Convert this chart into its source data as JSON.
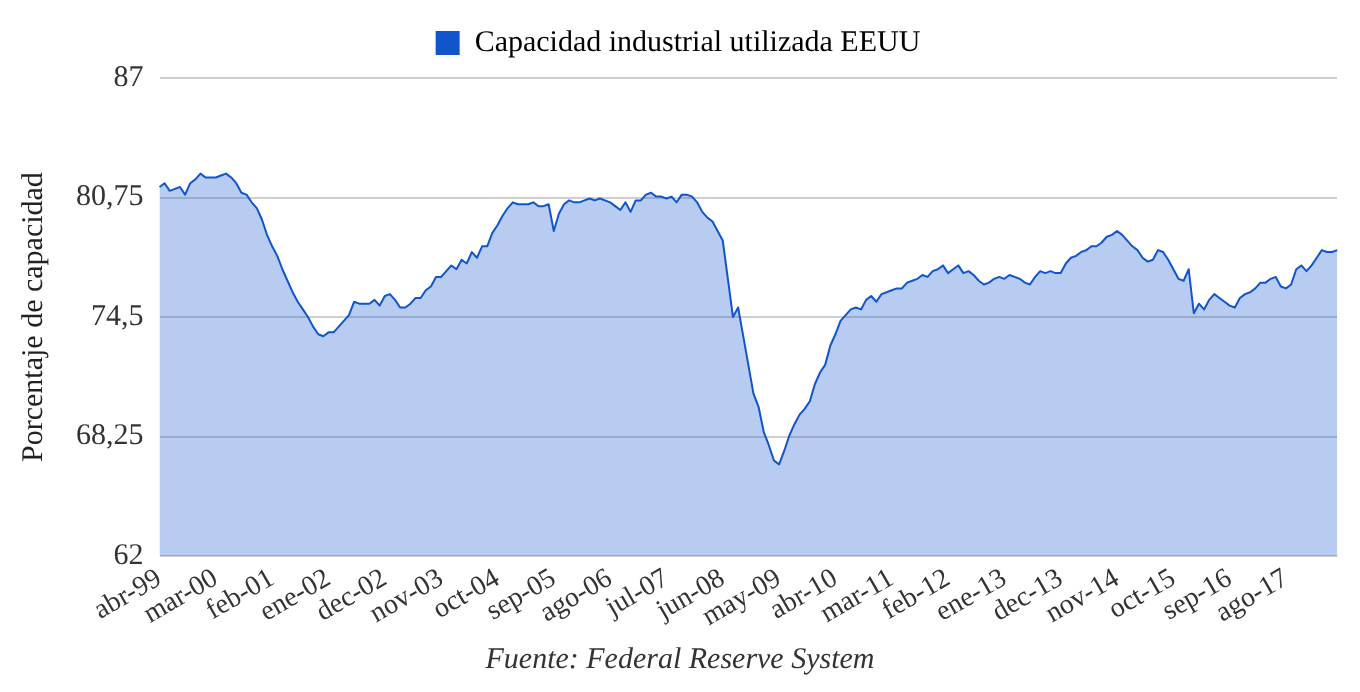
{
  "chart_data": {
    "type": "area",
    "title": null,
    "ylabel": "Porcentaje de capacidad",
    "annotations": [
      "Fuente: Federal Reserve System"
    ],
    "categories": [
      "abr-99",
      null,
      null,
      null,
      null,
      null,
      null,
      null,
      null,
      null,
      null,
      "mar-00",
      null,
      null,
      null,
      null,
      null,
      null,
      null,
      null,
      null,
      null,
      "feb-01",
      null,
      null,
      null,
      null,
      null,
      null,
      null,
      null,
      null,
      null,
      "ene-02",
      null,
      null,
      null,
      null,
      null,
      null,
      null,
      null,
      null,
      null,
      "dec-02",
      null,
      null,
      null,
      null,
      null,
      null,
      null,
      null,
      null,
      null,
      "nov-03",
      null,
      null,
      null,
      null,
      null,
      null,
      null,
      null,
      null,
      null,
      "oct-04",
      null,
      null,
      null,
      null,
      null,
      null,
      null,
      null,
      null,
      null,
      "sep-05",
      null,
      null,
      null,
      null,
      null,
      null,
      null,
      null,
      null,
      null,
      "ago-06",
      null,
      null,
      null,
      null,
      null,
      null,
      null,
      null,
      null,
      null,
      "jul-07",
      null,
      null,
      null,
      null,
      null,
      null,
      null,
      null,
      null,
      null,
      "jun-08",
      null,
      null,
      null,
      null,
      null,
      null,
      null,
      null,
      null,
      null,
      "may-09",
      null,
      null,
      null,
      null,
      null,
      null,
      null,
      null,
      null,
      null,
      "abr-10",
      null,
      null,
      null,
      null,
      null,
      null,
      null,
      null,
      null,
      null,
      "mar-11",
      null,
      null,
      null,
      null,
      null,
      null,
      null,
      null,
      null,
      null,
      "feb-12",
      null,
      null,
      null,
      null,
      null,
      null,
      null,
      null,
      null,
      null,
      "ene-13",
      null,
      null,
      null,
      null,
      null,
      null,
      null,
      null,
      null,
      null,
      "dec-13",
      null,
      null,
      null,
      null,
      null,
      null,
      null,
      null,
      null,
      null,
      "nov-14",
      null,
      null,
      null,
      null,
      null,
      null,
      null,
      null,
      null,
      null,
      "oct-15",
      null,
      null,
      null,
      null,
      null,
      null,
      null,
      null,
      null,
      null,
      "sep-16",
      null,
      null,
      null,
      null,
      null,
      null,
      null,
      null,
      null,
      null,
      "ago-17",
      null,
      null,
      null,
      null,
      null,
      null,
      null,
      null,
      null,
      null
    ],
    "series": [
      {
        "name": "Capacidad industrial utilizada EEUU",
        "color": "#1155cc",
        "values": [
          81.3,
          81.5,
          81.1,
          81.2,
          81.3,
          80.9,
          81.5,
          81.7,
          82.0,
          81.8,
          81.8,
          81.8,
          81.9,
          82.0,
          81.8,
          81.5,
          81.0,
          80.9,
          80.5,
          80.2,
          79.6,
          78.8,
          78.2,
          77.7,
          77.0,
          76.4,
          75.8,
          75.3,
          74.9,
          74.5,
          74.0,
          73.6,
          73.5,
          73.7,
          73.7,
          74.0,
          74.3,
          74.6,
          75.3,
          75.2,
          75.2,
          75.2,
          75.4,
          75.1,
          75.6,
          75.7,
          75.4,
          75.0,
          75.0,
          75.2,
          75.5,
          75.5,
          75.9,
          76.1,
          76.6,
          76.6,
          76.9,
          77.2,
          77.0,
          77.5,
          77.3,
          77.9,
          77.6,
          78.2,
          78.2,
          78.9,
          79.3,
          79.8,
          80.2,
          80.5,
          80.4,
          80.4,
          80.4,
          80.5,
          80.3,
          80.3,
          80.4,
          79.0,
          79.9,
          80.4,
          80.6,
          80.5,
          80.5,
          80.6,
          80.7,
          80.6,
          80.7,
          80.6,
          80.5,
          80.3,
          80.1,
          80.5,
          80.0,
          80.6,
          80.6,
          80.9,
          81.0,
          80.8,
          80.8,
          80.7,
          80.8,
          80.5,
          80.9,
          80.9,
          80.8,
          80.5,
          80.0,
          79.7,
          79.5,
          79.0,
          78.5,
          76.5,
          74.5,
          75.0,
          73.5,
          72.0,
          70.5,
          69.8,
          68.5,
          67.8,
          67.0,
          66.8,
          67.5,
          68.3,
          68.9,
          69.4,
          69.7,
          70.1,
          71.0,
          71.6,
          72.0,
          73.0,
          73.6,
          74.3,
          74.6,
          74.9,
          75.0,
          74.9,
          75.4,
          75.6,
          75.3,
          75.7,
          75.8,
          75.9,
          76.0,
          76.0,
          76.3,
          76.4,
          76.5,
          76.7,
          76.6,
          76.9,
          77.0,
          77.2,
          76.8,
          77.0,
          77.2,
          76.8,
          76.9,
          76.7,
          76.4,
          76.2,
          76.3,
          76.5,
          76.6,
          76.5,
          76.7,
          76.6,
          76.5,
          76.3,
          76.2,
          76.6,
          76.9,
          76.8,
          76.9,
          76.8,
          76.8,
          77.3,
          77.6,
          77.7,
          77.9,
          78.0,
          78.2,
          78.2,
          78.4,
          78.7,
          78.8,
          79.0,
          78.8,
          78.5,
          78.2,
          78.0,
          77.6,
          77.4,
          77.5,
          78.0,
          77.9,
          77.5,
          77.0,
          76.5,
          76.4,
          77.0,
          74.7,
          75.2,
          74.9,
          75.4,
          75.7,
          75.5,
          75.3,
          75.1,
          75.0,
          75.5,
          75.7,
          75.8,
          76.0,
          76.3,
          76.3,
          76.5,
          76.6,
          76.1,
          76.0,
          76.2,
          77.0,
          77.2,
          76.9,
          77.2,
          77.6,
          78.0,
          77.9,
          77.9,
          78.0
        ]
      }
    ],
    "ylim": [
      62,
      87
    ],
    "yticks": [
      62,
      {
        "value": 68.25,
        "label": "68,25"
      },
      {
        "value": 74.5,
        "label": "74,5"
      },
      {
        "value": 80.75,
        "label": "80,75"
      },
      87
    ],
    "grid": "y",
    "legend": "top",
    "marker": "none"
  }
}
